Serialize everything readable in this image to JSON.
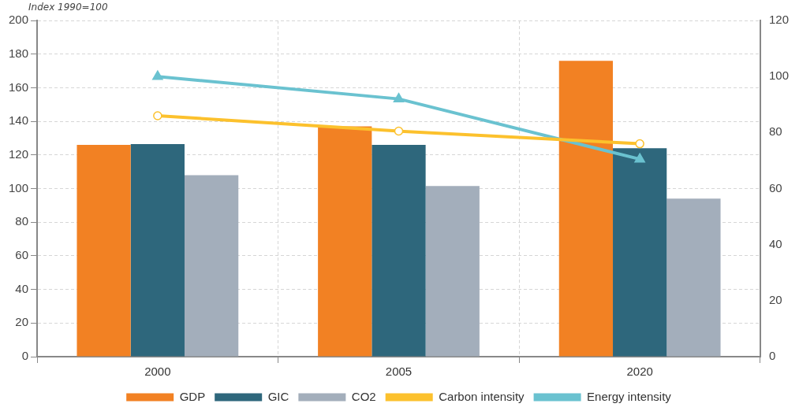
{
  "chart_data": {
    "type": "bar",
    "ylabel": "Index 1990=100",
    "categories": [
      "2000",
      "2005",
      "2020"
    ],
    "series": [
      {
        "name": "GDP",
        "color": "#f28123",
        "values": [
          126,
          137,
          176
        ]
      },
      {
        "name": "GIC",
        "color": "#2e677c",
        "values": [
          126.5,
          126,
          124
        ]
      },
      {
        "name": "CO2",
        "color": "#a3aebb",
        "values": [
          108,
          101.5,
          94
        ]
      },
      {
        "name": "Carbon intensity",
        "type": "line",
        "axis": "y2",
        "marker": "circle",
        "color": "#fcc12d",
        "values": [
          86,
          80.5,
          76
        ]
      },
      {
        "name": "Energy intensity",
        "type": "line",
        "axis": "y2",
        "marker": "triangle",
        "color": "#6ac2d0",
        "values": [
          100,
          92,
          70.5
        ]
      }
    ],
    "ylim": [
      0,
      200
    ],
    "yticks": [
      0,
      20,
      40,
      60,
      80,
      100,
      120,
      140,
      160,
      180,
      200
    ],
    "y2lim": [
      0,
      120
    ],
    "y2ticks": [
      0,
      20,
      40,
      60,
      80,
      100,
      120
    ],
    "grid": true,
    "legend": "bottom"
  }
}
